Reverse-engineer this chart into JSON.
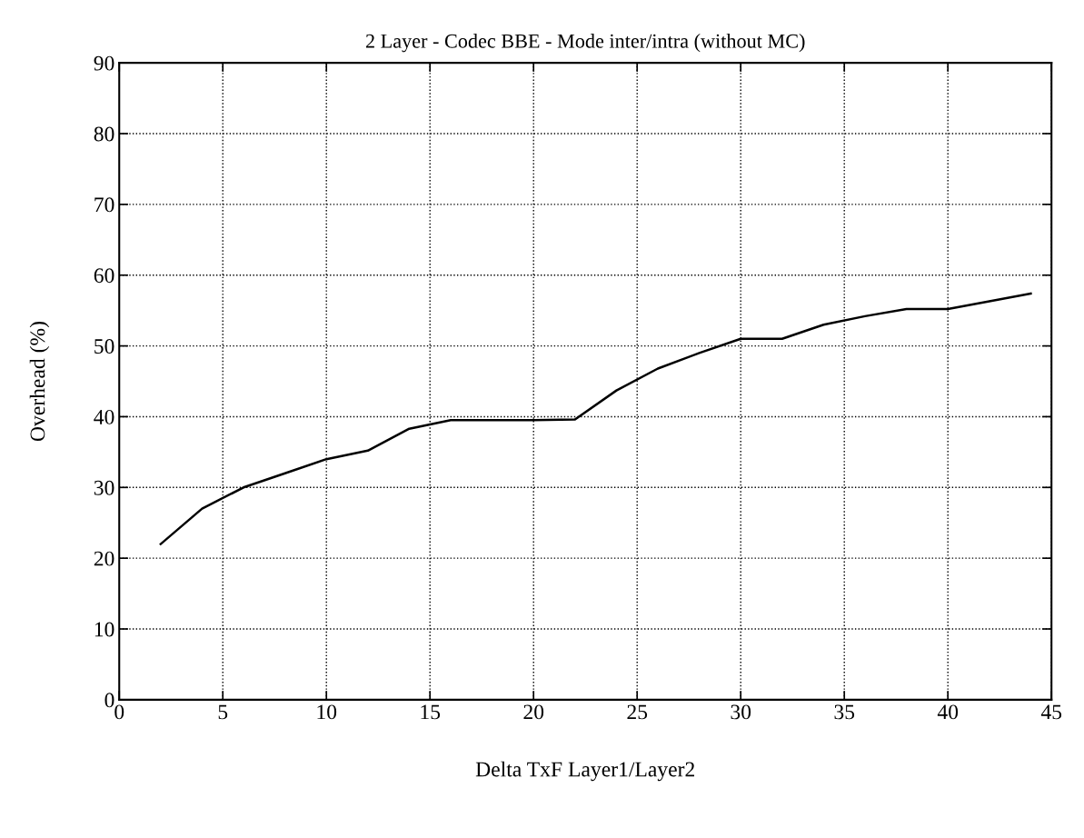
{
  "chart_data": {
    "type": "line",
    "title": "2 Layer - Codec BBE - Mode inter/intra (without MC)",
    "xlabel": "Delta TxF Layer1/Layer2",
    "ylabel": "Overhead (%)",
    "x": [
      2,
      4,
      6,
      8,
      10,
      12,
      14,
      16,
      18,
      20,
      22,
      24,
      26,
      28,
      30,
      32,
      34,
      36,
      38,
      40,
      42,
      44
    ],
    "series": [
      {
        "color": "#000000",
        "values": [
          22,
          27,
          30,
          32,
          34,
          35.2,
          38.3,
          39.5,
          39.5,
          39.5,
          39.6,
          43.7,
          46.8,
          49,
          51,
          51,
          53,
          54.2,
          55.2,
          55.2,
          56.3,
          57.4
        ]
      }
    ],
    "xlim": [
      0,
      45
    ],
    "xticks": [
      0,
      5,
      10,
      15,
      20,
      25,
      30,
      35,
      40,
      45
    ],
    "ylim": [
      0,
      90
    ],
    "yticks": [
      0,
      10,
      20,
      30,
      40,
      50,
      60,
      70,
      80,
      90
    ],
    "grid": true,
    "line_style": "solid",
    "marker": "none"
  }
}
